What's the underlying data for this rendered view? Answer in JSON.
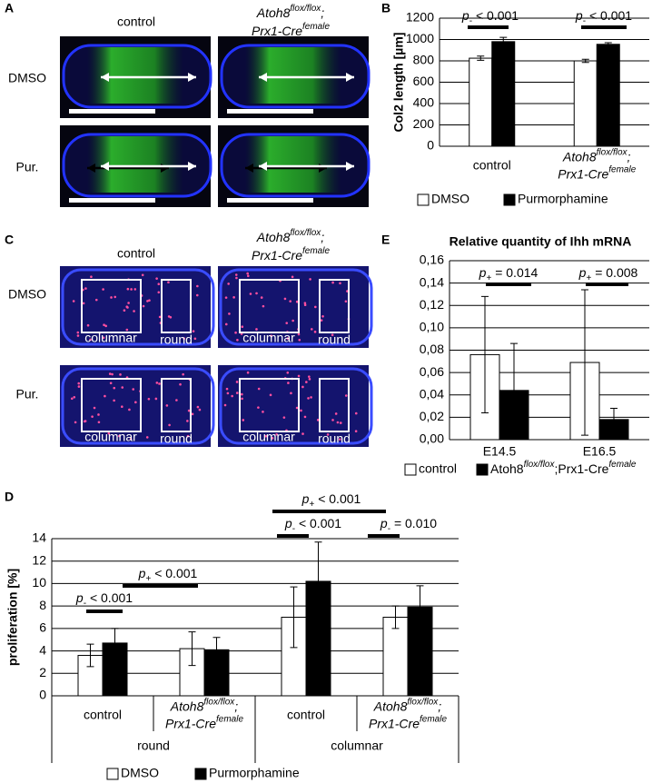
{
  "panel_labels": [
    "A",
    "B",
    "C",
    "D",
    "E"
  ],
  "panel_a": {
    "columns": [
      "control",
      [
        [
          "Atoh8",
          {
            "sup": "flox/flox"
          },
          ";"
        ],
        [
          "Prx1-Cre",
          {
            "sup": "female"
          }
        ]
      ]
    ],
    "rows": [
      "DMSO",
      "Pur."
    ]
  },
  "panel_c": {
    "columns": [
      "control",
      [
        [
          "Atoh8",
          {
            "sup": "flox/flox"
          },
          ";"
        ],
        [
          "Prx1-Cre",
          {
            "sup": "female"
          }
        ]
      ]
    ],
    "rows": [
      "DMSO",
      "Pur."
    ],
    "regions": [
      [
        "columnar",
        "round"
      ],
      [
        "columnar",
        "round"
      ],
      [
        "columnar",
        "round"
      ],
      [
        "columnar",
        "round"
      ]
    ]
  },
  "chart_data": [
    {
      "type": "bar",
      "ylabel": "Col2 length [µm]",
      "categories": [
        "control",
        [
          [
            "Atoh8",
            {
              "sup": "flox/flox"
            },
            ";"
          ],
          [
            "Prx1-Cre",
            {
              "sup": "female"
            }
          ]
        ]
      ],
      "series": [
        {
          "name": "DMSO",
          "color": "#ffffff",
          "values": [
            825,
            800
          ],
          "errors": [
            20,
            15
          ]
        },
        {
          "name": "Purmorphamine",
          "color": "#000000",
          "values": [
            980,
            955
          ],
          "errors": [
            40,
            15
          ]
        }
      ],
      "ylim": [
        0,
        1200
      ],
      "yticks": [
        0,
        200,
        400,
        600,
        800,
        1000,
        1200
      ],
      "grid": true,
      "annotations": [
        [
          {
            "i": "p"
          },
          {
            "sub": "-"
          },
          " < 0.001"
        ],
        [
          {
            "i": "p"
          },
          {
            "sub": "-"
          },
          " < 0.001"
        ]
      ]
    },
    {
      "type": "bar",
      "title": "Relative quantity of Ihh mRNA",
      "categories": [
        "E14.5",
        "E16.5"
      ],
      "series": [
        {
          "name": "control",
          "color": "#ffffff",
          "values": [
            0.076,
            0.069
          ],
          "errors": [
            0.052,
            0.065
          ]
        },
        {
          "name": [
            "Atoh8",
            {
              "sup": "flox/flox"
            },
            ";Prx1-Cre",
            {
              "sup": "female"
            }
          ],
          "color": "#000000",
          "values": [
            0.044,
            0.018
          ],
          "errors": [
            0.042,
            0.01
          ]
        }
      ],
      "ylim": [
        0,
        0.16
      ],
      "yticks": [
        {
          "value": 0,
          "label": "0,00"
        },
        {
          "value": 0.02,
          "label": "0,02"
        },
        {
          "value": 0.04,
          "label": "0,04"
        },
        {
          "value": 0.06,
          "label": "0,06"
        },
        {
          "value": 0.08,
          "label": "0,08"
        },
        {
          "value": 0.1,
          "label": "0,10"
        },
        {
          "value": 0.12,
          "label": "0,12"
        },
        {
          "value": 0.14,
          "label": "0,14"
        },
        {
          "value": 0.16,
          "label": "0,16"
        }
      ],
      "grid": true,
      "annotations": [
        [
          {
            "i": "p"
          },
          {
            "sub": "+"
          },
          " = 0.014"
        ],
        [
          {
            "i": "p"
          },
          {
            "sub": "+"
          },
          " = 0.008"
        ]
      ]
    },
    {
      "type": "bar",
      "ylabel": "proliferation [%]",
      "categories": [
        "control",
        [
          [
            "Atoh8",
            {
              "sup": "flox/flox"
            },
            ";"
          ],
          [
            "Prx1-Cre",
            {
              "sup": "female"
            }
          ]
        ],
        "control",
        [
          [
            "Atoh8",
            {
              "sup": "flox/flox"
            },
            ";"
          ],
          [
            "Prx1-Cre",
            {
              "sup": "female"
            }
          ]
        ]
      ],
      "groups": [
        "round",
        "columnar"
      ],
      "series": [
        {
          "name": "DMSO",
          "color": "#ffffff",
          "values": [
            3.6,
            4.2,
            7.0,
            7.0
          ],
          "errors": [
            1.0,
            1.5,
            2.7,
            1.0
          ]
        },
        {
          "name": "Purmorphamine",
          "color": "#000000",
          "values": [
            4.7,
            4.1,
            10.2,
            7.9
          ],
          "errors": [
            1.3,
            1.1,
            3.5,
            1.9
          ]
        }
      ],
      "ylim": [
        0,
        14
      ],
      "yticks": [
        0,
        2,
        4,
        6,
        8,
        10,
        12,
        14
      ],
      "grid": true,
      "annotations": [
        [
          {
            "i": "p"
          },
          {
            "sub": "-"
          },
          " < 0.001"
        ],
        [
          {
            "i": "p"
          },
          {
            "sub": "+"
          },
          " < 0.001"
        ],
        [
          {
            "i": "p"
          },
          {
            "sub": "+"
          },
          " < 0.001"
        ],
        [
          {
            "i": "p"
          },
          {
            "sub": "-"
          },
          " < 0.001"
        ],
        [
          {
            "i": "p"
          },
          {
            "sub": "-"
          },
          " = 0.010"
        ]
      ]
    }
  ]
}
